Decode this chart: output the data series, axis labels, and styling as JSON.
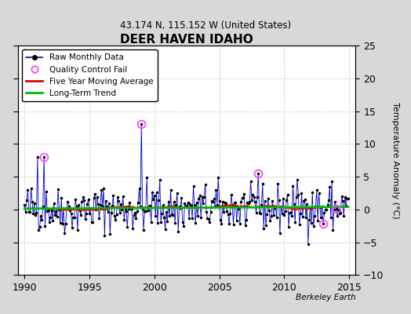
{
  "title": "DEER HAVEN IDAHO",
  "subtitle": "43.174 N, 115.152 W (United States)",
  "ylabel_right": "Temperature Anomaly (°C)",
  "watermark": "Berkeley Earth",
  "xlim": [
    1989.5,
    2015.5
  ],
  "ylim": [
    -10,
    25
  ],
  "yticks": [
    -10,
    -5,
    0,
    5,
    10,
    15,
    20,
    25
  ],
  "xticks": [
    1990,
    1995,
    2000,
    2005,
    2010,
    2015
  ],
  "raw_color": "#0000cc",
  "dot_color": "#000000",
  "moving_avg_color": "#dd0000",
  "trend_color": "#00bb00",
  "qc_fail_color": "#ff44ff",
  "background_color": "#d8d8d8",
  "plot_bg_color": "#ffffff",
  "seed": 42,
  "n_months": 300,
  "start_year": 1990.0
}
